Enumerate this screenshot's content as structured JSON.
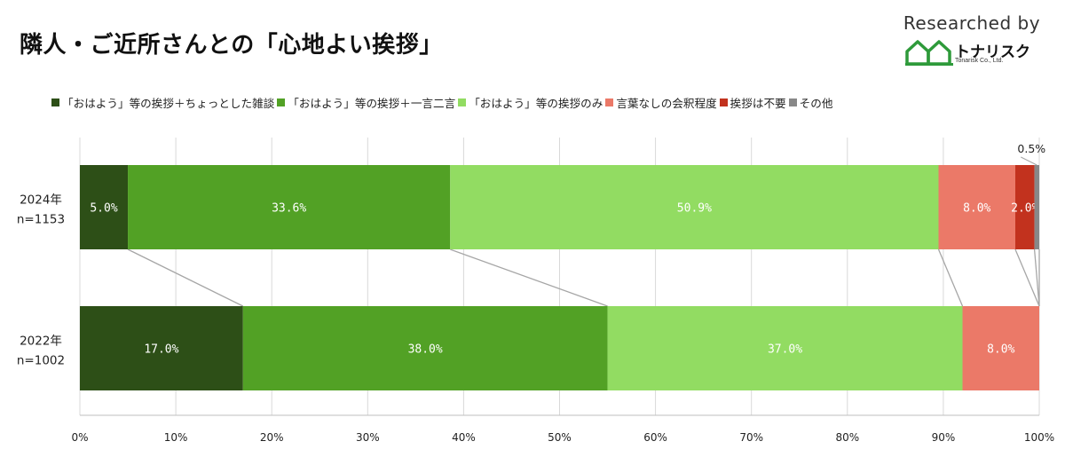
{
  "title": "隣人・ご近所さんとの「心地よい挨拶」",
  "brand": {
    "researched_by": "Researched by",
    "logo_text": "トナリスク",
    "logo_sub": "Tonarisk Co., Ltd."
  },
  "chart_data": {
    "type": "bar",
    "orientation": "horizontal",
    "stacked": "percent",
    "categories": [
      "2024年\nn=1153",
      "2022年\nn=1002"
    ],
    "series": [
      {
        "name": "「おはよう」等の挨拶＋ちょっとした雑談",
        "color": "#2d4f17",
        "values": [
          5.0,
          17.0
        ]
      },
      {
        "name": "「おはよう」等の挨拶＋一言二言",
        "color": "#52a125",
        "values": [
          33.6,
          38.0
        ]
      },
      {
        "name": "「おはよう」等の挨拶のみ",
        "color": "#92dc62",
        "values": [
          50.9,
          37.0
        ]
      },
      {
        "name": "言葉なしの会釈程度",
        "color": "#eb7968",
        "values": [
          8.0,
          8.0
        ]
      },
      {
        "name": "挨拶は不要",
        "color": "#c2321e",
        "values": [
          2.0,
          0
        ]
      },
      {
        "name": "その他",
        "color": "#888888",
        "values": [
          0.5,
          0
        ]
      }
    ],
    "data_labels": [
      [
        "5.0%",
        "33.6%",
        "50.9%",
        "8.0%",
        "2.0%",
        "0.5%"
      ],
      [
        "17.0%",
        "38.0%",
        "37.0%",
        "8.0%",
        "",
        ""
      ]
    ],
    "xlim": [
      0,
      100
    ],
    "x_ticks": [
      "0%",
      "10%",
      "20%",
      "30%",
      "40%",
      "50%",
      "60%",
      "70%",
      "80%",
      "90%",
      "100%"
    ],
    "legend_position": "top",
    "grid": "vertical",
    "series_connector_lines": true
  }
}
